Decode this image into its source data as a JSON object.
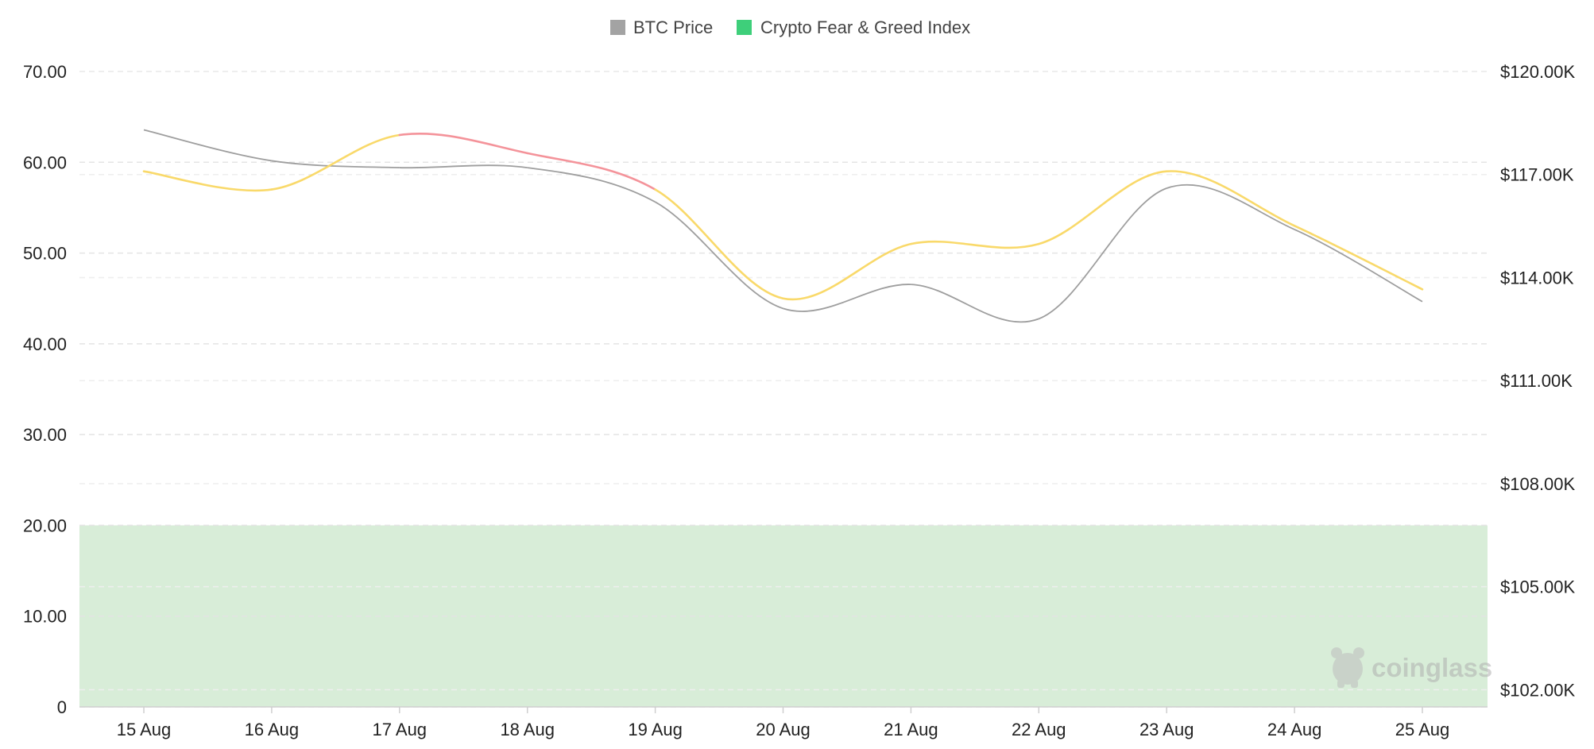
{
  "legend": [
    {
      "label": "BTC Price",
      "color": "#a3a3a3"
    },
    {
      "label": "Crypto Fear & Greed Index",
      "color": "#3ecf7a"
    }
  ],
  "watermark": "coinglass",
  "chart_data": {
    "type": "line",
    "categories": [
      "15 Aug",
      "16 Aug",
      "17 Aug",
      "18 Aug",
      "19 Aug",
      "20 Aug",
      "21 Aug",
      "22 Aug",
      "23 Aug",
      "24 Aug",
      "25 Aug"
    ],
    "left_axis": {
      "ticks": [
        "0",
        "10.00",
        "20.00",
        "30.00",
        "40.00",
        "50.00",
        "60.00",
        "70.00"
      ],
      "ylim": [
        0,
        70
      ]
    },
    "right_axis": {
      "ticks": [
        "$102.00K",
        "$105.00K",
        "$108.00K",
        "$111.00K",
        "$114.00K",
        "$117.00K",
        "$120.00K"
      ],
      "ylim": [
        101500,
        120000
      ]
    },
    "series": [
      {
        "name": "BTC Price",
        "axis": "right",
        "color": "#9e9e9e",
        "values": [
          118300,
          117400,
          117200,
          117200,
          116200,
          113100,
          113800,
          112800,
          116600,
          115400,
          113300
        ]
      },
      {
        "name": "Crypto Fear & Greed Index",
        "axis": "left",
        "values": [
          59,
          57,
          63,
          61,
          57,
          45,
          51,
          51,
          59,
          53,
          46
        ],
        "segment_colors": [
          "#f9d96a",
          "#f9d96a",
          "#f4939a",
          "#f4939a",
          "#f9d96a",
          "#f9d96a",
          "#f9d96a",
          "#f9d96a",
          "#f9d96a",
          "#f9d96a"
        ]
      }
    ],
    "bands": [
      {
        "from": 0,
        "to": 20,
        "color": "#d8edd8"
      }
    ],
    "grid": true
  }
}
